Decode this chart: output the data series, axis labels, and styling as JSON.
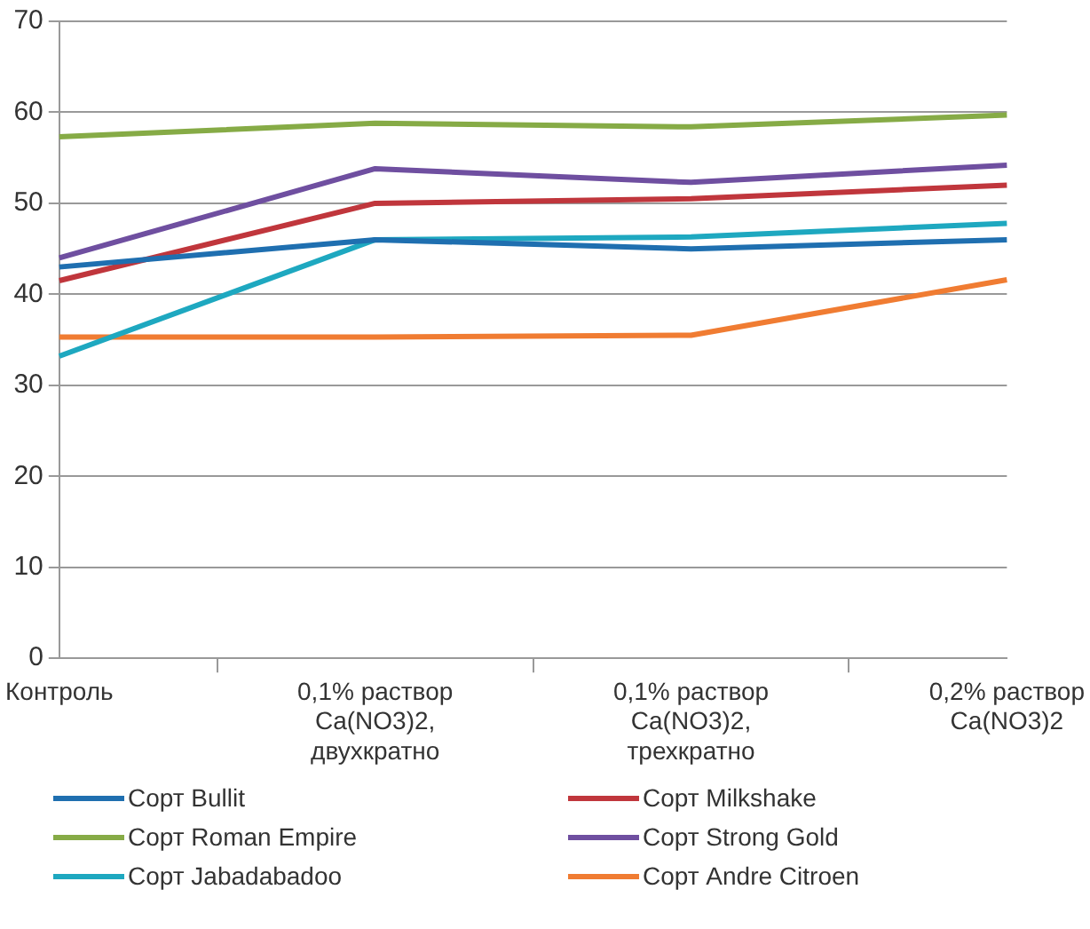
{
  "chart_data": {
    "type": "line",
    "categories": [
      "Контроль",
      "0,1% раствор\nCa(NO3)2,\nдвухкратно",
      "0,1% раствор\nCa(NO3)2,\nтрехкратно",
      "0,2% раствор\nCa(NO3)2"
    ],
    "series": [
      {
        "name": "Сорт Bullit",
        "color": "#1f6fb0",
        "values": [
          43,
          46,
          45,
          46
        ]
      },
      {
        "name": "Сорт Milkshake",
        "color": "#c0363c",
        "values": [
          41.5,
          50,
          50.5,
          52
        ]
      },
      {
        "name": "Сорт Roman Empire",
        "color": "#86ab46",
        "values": [
          57.3,
          58.8,
          58.4,
          59.7
        ]
      },
      {
        "name": "Сорт Strong Gold",
        "color": "#6f4fa0",
        "values": [
          44,
          53.8,
          52.3,
          54.2
        ]
      },
      {
        "name": "Сорт Jabadabadoo",
        "color": "#1ea8c0",
        "values": [
          33.2,
          46,
          46.3,
          47.8
        ]
      },
      {
        "name": "Сорт Andre Citroen",
        "color": "#f07c32",
        "values": [
          35.3,
          35.3,
          35.5,
          41.6
        ]
      }
    ],
    "ylim": [
      0,
      70
    ],
    "yticks": [
      0,
      10,
      20,
      30,
      40,
      50,
      60,
      70
    ],
    "grid": "y",
    "legend": "bottom",
    "marker": "none",
    "line_style": "solid"
  }
}
